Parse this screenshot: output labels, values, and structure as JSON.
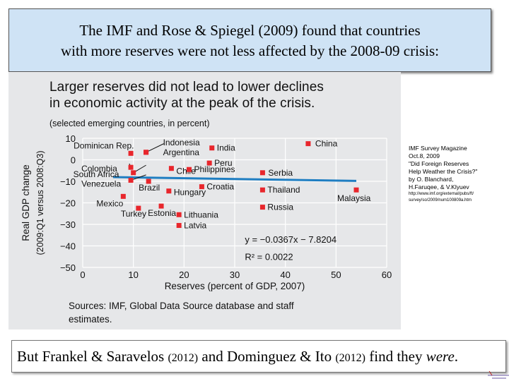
{
  "header": {
    "line1": "The IMF and Rose & Spiegel (2009) found that countries",
    "line2": "with more reserves were not less affected by the 2008-09 crisis:"
  },
  "figure": {
    "title_line1": "Larger reserves did not lead to lower declines",
    "title_line2": "in economic activity at the peak of the crisis.",
    "subtitle": "(selected emerging countries, in percent)",
    "sources_line1": "Sources: IMF, Global Data Source database and staff",
    "sources_line2": "estimates."
  },
  "sidenote": {
    "lines": [
      "IMF Survey Magazine",
      "Oct.8, 2009",
      "\"Did Foreign Reserves",
      "Help Weather the Crisis?\"",
      "by O. Blanchard,",
      "H.Faruqee, & V.Klyuev"
    ],
    "url_line1": "http://www.imf.org/external/pubs/ft/",
    "url_line2": "survey/so/2009/num100809a.htm"
  },
  "footer": {
    "text1": "But Frankel & Saravelos ",
    "year1": "(2012)",
    "text2": " and ",
    "text3": "Dominguez & Ito ",
    "year2": "(2012)",
    "text4": " find they ",
    "emph": "were",
    "text5": "."
  },
  "colors": {
    "marker": "#e8262c",
    "trendline": "#1f7ec2",
    "plot_bg": "#e6e7e9",
    "title_bg": "#cfe3f5"
  },
  "chart_data": {
    "type": "scatter",
    "title": "Larger reserves did not lead to lower declines in economic activity at the peak of the crisis.",
    "subtitle": "(selected emerging countries, in percent)",
    "xlabel": "Reserves (percent of GDP, 2007)",
    "ylabel": "Real GDP change",
    "ylabel2": "(2009:Q1 versus 2008:Q3)",
    "xlim": [
      0,
      60
    ],
    "ylim": [
      -50,
      10
    ],
    "xticks": [
      0,
      10,
      20,
      30,
      40,
      50,
      60
    ],
    "yticks": [
      10,
      0,
      -10,
      -20,
      -30,
      -40,
      -50
    ],
    "tick_labels_y": [
      "10",
      "0",
      "−10",
      "−20",
      "−30",
      "−40",
      "−50"
    ],
    "grid": true,
    "points": [
      {
        "label": "Dominican Rep.",
        "x": 9.5,
        "y": 3.0
      },
      {
        "label": "Indonesia",
        "x": 12.5,
        "y": 3.5
      },
      {
        "label": "Argentina",
        "x": 12.5,
        "y": 3.5
      },
      {
        "label": "India",
        "x": 25.5,
        "y": 5.5
      },
      {
        "label": "China",
        "x": 44.5,
        "y": 7.5
      },
      {
        "label": "Colombia",
        "x": 9.5,
        "y": -3.5
      },
      {
        "label": "Peru",
        "x": 25.0,
        "y": -1.5
      },
      {
        "label": "South Africa",
        "x": 10.0,
        "y": -6.0
      },
      {
        "label": "Chile",
        "x": 17.5,
        "y": -4.0
      },
      {
        "label": "Philippines",
        "x": 21.0,
        "y": -4.5
      },
      {
        "label": "Serbia",
        "x": 35.5,
        "y": -6.0
      },
      {
        "label": "Venezuela",
        "x": 9.5,
        "y": -9.5
      },
      {
        "label": "Brazil",
        "x": 13.0,
        "y": -10.0
      },
      {
        "label": "Croatia",
        "x": 23.5,
        "y": -12.5
      },
      {
        "label": "Thailand",
        "x": 35.5,
        "y": -14.0
      },
      {
        "label": "Hungary",
        "x": 17.0,
        "y": -14.5
      },
      {
        "label": "Malaysia",
        "x": 54.0,
        "y": -14.0
      },
      {
        "label": "Mexico",
        "x": 8.0,
        "y": -17.0
      },
      {
        "label": "Estonia",
        "x": 15.5,
        "y": -21.5
      },
      {
        "label": "Turkey",
        "x": 11.0,
        "y": -22.5
      },
      {
        "label": "Russia",
        "x": 35.5,
        "y": -22.0
      },
      {
        "label": "Lithuania",
        "x": 19.0,
        "y": -25.5
      },
      {
        "label": "Latvia",
        "x": 19.0,
        "y": -30.5
      }
    ],
    "regression": {
      "equation": "y = −0.0367x − 7.8204",
      "r2": "R² = 0.0022",
      "slope": -0.0367,
      "intercept": -7.8204,
      "x_range": [
        6,
        54
      ]
    }
  }
}
